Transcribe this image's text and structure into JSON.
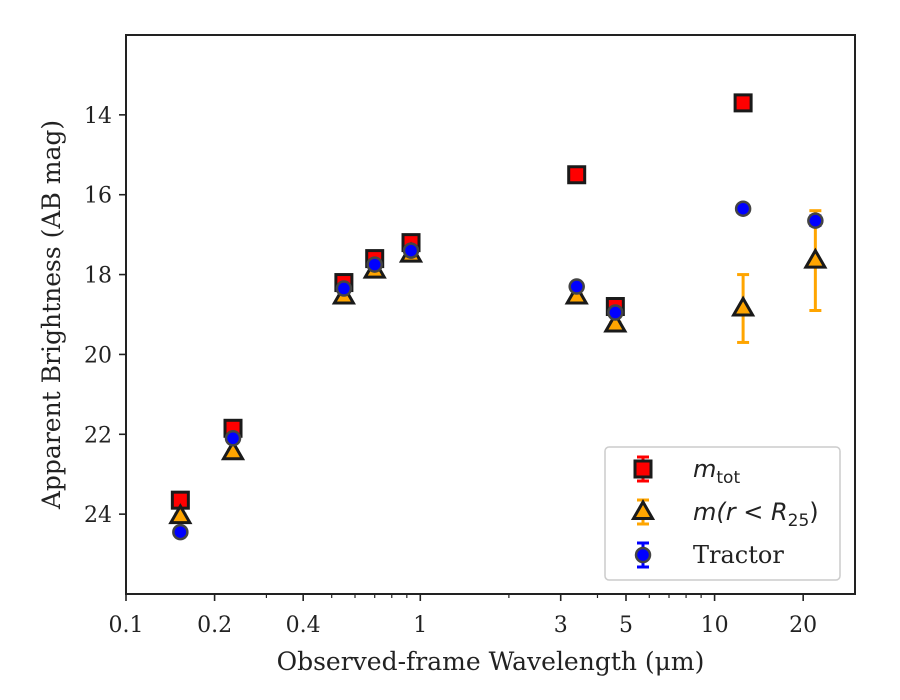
{
  "chart_data": {
    "type": "scatter",
    "xscale": "log",
    "xlim": [
      0.1,
      30
    ],
    "ylim": [
      26,
      12
    ],
    "y_inverted": true,
    "xlabel": "Observed-frame Wavelength (μm)",
    "ylabel": "Apparent Brightness (AB mag)",
    "xticks": [
      {
        "value": 0.1,
        "label": "0.1"
      },
      {
        "value": 0.2,
        "label": "0.2"
      },
      {
        "value": 0.4,
        "label": "0.4"
      },
      {
        "value": 1,
        "label": "1"
      },
      {
        "value": 3,
        "label": "3"
      },
      {
        "value": 5,
        "label": "5"
      },
      {
        "value": 10,
        "label": "10"
      },
      {
        "value": 20,
        "label": "20"
      }
    ],
    "yticks": [
      {
        "value": 14,
        "label": "14"
      },
      {
        "value": 16,
        "label": "16"
      },
      {
        "value": 18,
        "label": "18"
      },
      {
        "value": 20,
        "label": "20"
      },
      {
        "value": 22,
        "label": "22"
      },
      {
        "value": 24,
        "label": "24"
      }
    ],
    "legend_position": "lower-right",
    "series": [
      {
        "name": "m_tot",
        "legend_main": "m",
        "legend_sub": "tot",
        "marker": "square",
        "color": "#ff0000",
        "edge": "#1a1a1a",
        "errcolor": "#ff0000",
        "points": [
          {
            "x": 0.153,
            "y": 23.65,
            "err": 0.08
          },
          {
            "x": 0.231,
            "y": 21.85,
            "err": 0.08
          },
          {
            "x": 0.55,
            "y": 18.2,
            "err": 0.05
          },
          {
            "x": 0.7,
            "y": 17.6,
            "err": 0.05
          },
          {
            "x": 0.93,
            "y": 17.2,
            "err": 0.05
          },
          {
            "x": 3.4,
            "y": 15.5,
            "err": 0.05
          },
          {
            "x": 4.6,
            "y": 18.8,
            "err": 0.05
          },
          {
            "x": 12.5,
            "y": 13.7,
            "err": 0.05
          }
        ]
      },
      {
        "name": "m(r < R25)",
        "legend_main": "m(r < R",
        "legend_sub": "25",
        "legend_tail": ")",
        "marker": "triangle",
        "color": "#ffa500",
        "edge": "#1a1a1a",
        "errcolor": "#ffa500",
        "points": [
          {
            "x": 0.153,
            "y": 24.05,
            "err": 0.05
          },
          {
            "x": 0.231,
            "y": 22.45,
            "err": 0.05
          },
          {
            "x": 0.55,
            "y": 18.55,
            "err": 0.05
          },
          {
            "x": 0.7,
            "y": 17.9,
            "err": 0.05
          },
          {
            "x": 0.93,
            "y": 17.5,
            "err": 0.05
          },
          {
            "x": 3.4,
            "y": 18.55,
            "err": 0.05
          },
          {
            "x": 4.6,
            "y": 19.25,
            "err": 0.05
          },
          {
            "x": 12.5,
            "y": 18.85,
            "errlow": 0.85,
            "errhigh": 0.85
          },
          {
            "x": 22,
            "y": 17.65,
            "errlow": 1.25,
            "errhigh": 1.25
          }
        ]
      },
      {
        "name": "Tractor",
        "legend_main": "Tractor",
        "marker": "circle",
        "color": "#0000ff",
        "edge": "#444444",
        "errcolor": "#0000ff",
        "points": [
          {
            "x": 0.153,
            "y": 24.45,
            "err": 0.08
          },
          {
            "x": 0.231,
            "y": 22.1,
            "err": 0.05
          },
          {
            "x": 0.55,
            "y": 18.35,
            "err": 0.05
          },
          {
            "x": 0.7,
            "y": 17.75,
            "err": 0.05
          },
          {
            "x": 0.93,
            "y": 17.4,
            "err": 0.05
          },
          {
            "x": 3.4,
            "y": 18.3,
            "err": 0.05
          },
          {
            "x": 4.6,
            "y": 18.95,
            "err": 0.05
          },
          {
            "x": 12.5,
            "y": 16.35,
            "err": 0.05
          },
          {
            "x": 22,
            "y": 16.65,
            "err": 0.12
          }
        ]
      }
    ]
  }
}
